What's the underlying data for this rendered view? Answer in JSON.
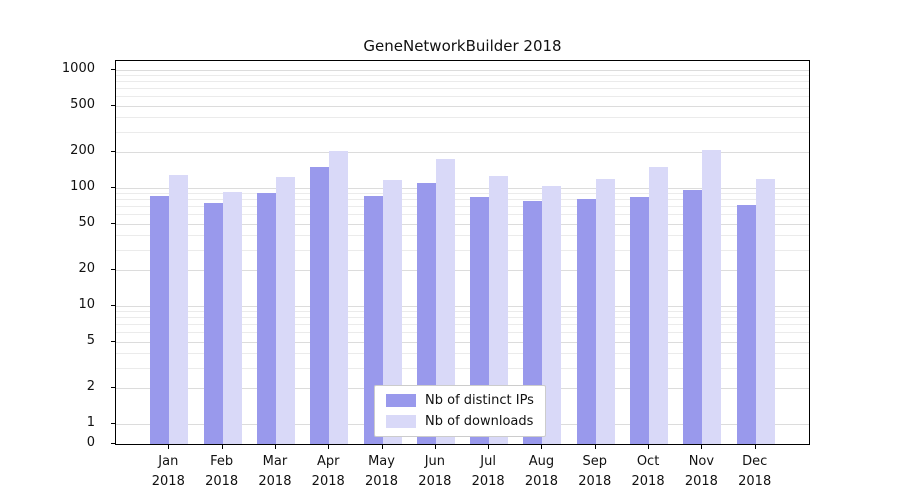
{
  "chart_data": {
    "type": "bar",
    "title": "GeneNetworkBuilder 2018",
    "categories": [
      "Jan 2018",
      "Feb 2018",
      "Mar 2018",
      "Apr 2018",
      "May 2018",
      "Jun 2018",
      "Jul 2018",
      "Aug 2018",
      "Sep 2018",
      "Oct 2018",
      "Nov 2018",
      "Dec 2018"
    ],
    "series": [
      {
        "name": "Nb of distinct IPs",
        "color": "#9999ec",
        "values": [
          85,
          75,
          90,
          150,
          85,
          110,
          84,
          78,
          80,
          84,
          97,
          72
        ]
      },
      {
        "name": "Nb of downloads",
        "color": "#d9d9f8",
        "values": [
          128,
          92,
          124,
          205,
          118,
          175,
          126,
          105,
          120,
          152,
          210,
          120
        ]
      }
    ],
    "yscale": "symlog",
    "yticks": [
      0,
      1,
      2,
      5,
      10,
      20,
      50,
      100,
      200,
      500,
      1000
    ],
    "ylim": [
      0,
      1200
    ],
    "grid": true,
    "legend_position": "lower-center",
    "grid_major_color": "#dcdcdc",
    "grid_minor_color": "#ebebeb"
  }
}
